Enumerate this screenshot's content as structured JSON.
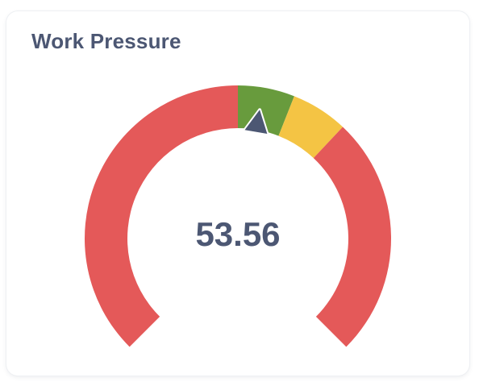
{
  "card": {
    "title": "Work Pressure"
  },
  "gauge": {
    "value": 53.56,
    "value_label": "53.56",
    "min": 0,
    "max": 100,
    "start_angle_deg": -135,
    "end_angle_deg": 135,
    "segments": [
      {
        "from": 0,
        "to": 50,
        "color": "#e45959"
      },
      {
        "from": 50,
        "to": 58,
        "color": "#689b3d"
      },
      {
        "from": 58,
        "to": 66,
        "color": "#f4c444"
      },
      {
        "from": 66,
        "to": 100,
        "color": "#e45959"
      }
    ],
    "needle_color": "#4c5773",
    "value_color": "#4c5773"
  }
}
